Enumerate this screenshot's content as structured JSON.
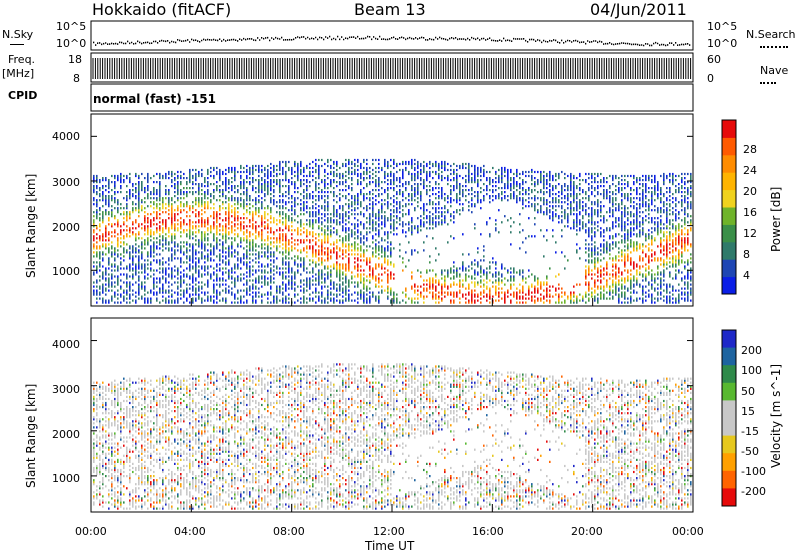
{
  "header": {
    "station": "Hokkaido (fitACF)",
    "beam": "Beam 13",
    "date": "04/Jun/2011"
  },
  "strip": {
    "nsky_label": "N.Sky",
    "nsky_ticks": [
      "10^5",
      "10^0"
    ],
    "nsky_right_ticks": [
      "10^5",
      "10^0"
    ],
    "nsearch_label": "N.Search",
    "freq_label": "Freq.",
    "freq_unit": "[MHz]",
    "freq_ticks": [
      "18",
      "8"
    ],
    "nave_ticks": [
      "60",
      "0"
    ],
    "nave_label": "Nave",
    "cpid_label": "CPID",
    "cpid_value": "normal (fast) -151"
  },
  "chart_data": [
    {
      "type": "heatmap",
      "title": "",
      "ylabel": "Slant Range [km]",
      "xlabel": "Time UT",
      "yticks": [
        "1000",
        "2000",
        "3000",
        "4000"
      ],
      "ylim": [
        200,
        4500
      ],
      "colorbar": {
        "label": "Power [dB]",
        "ticks": [
          "4",
          "8",
          "12",
          "16",
          "20",
          "24",
          "28"
        ],
        "colors": [
          "#0a1ee6",
          "#1e46b4",
          "#2f7a6a",
          "#3a8f48",
          "#6fb32a",
          "#f0d21e",
          "#ffb400",
          "#ff8c00",
          "#ff5a00",
          "#e60a0a"
        ]
      }
    },
    {
      "type": "heatmap",
      "title": "",
      "ylabel": "Slant Range [km]",
      "xlabel": "Time UT",
      "yticks": [
        "1000",
        "2000",
        "3000",
        "4000"
      ],
      "ylim": [
        200,
        4500
      ],
      "colorbar": {
        "label": "Velocity [m s^-1]",
        "ticks": [
          "200",
          "100",
          "50",
          "15",
          "-15",
          "-50",
          "-100",
          "-200"
        ],
        "colors": [
          "#1e28c8",
          "#1e64a0",
          "#2f8a4a",
          "#58b830",
          "#c8c8c8",
          "#c8c8c8",
          "#e6c81e",
          "#ffa000",
          "#ff6400",
          "#e60a0a"
        ]
      }
    }
  ],
  "time_axis": {
    "label": "Time UT",
    "ticks": [
      "00:00",
      "04:00",
      "08:00",
      "12:00",
      "16:00",
      "20:00",
      "00:00"
    ]
  }
}
